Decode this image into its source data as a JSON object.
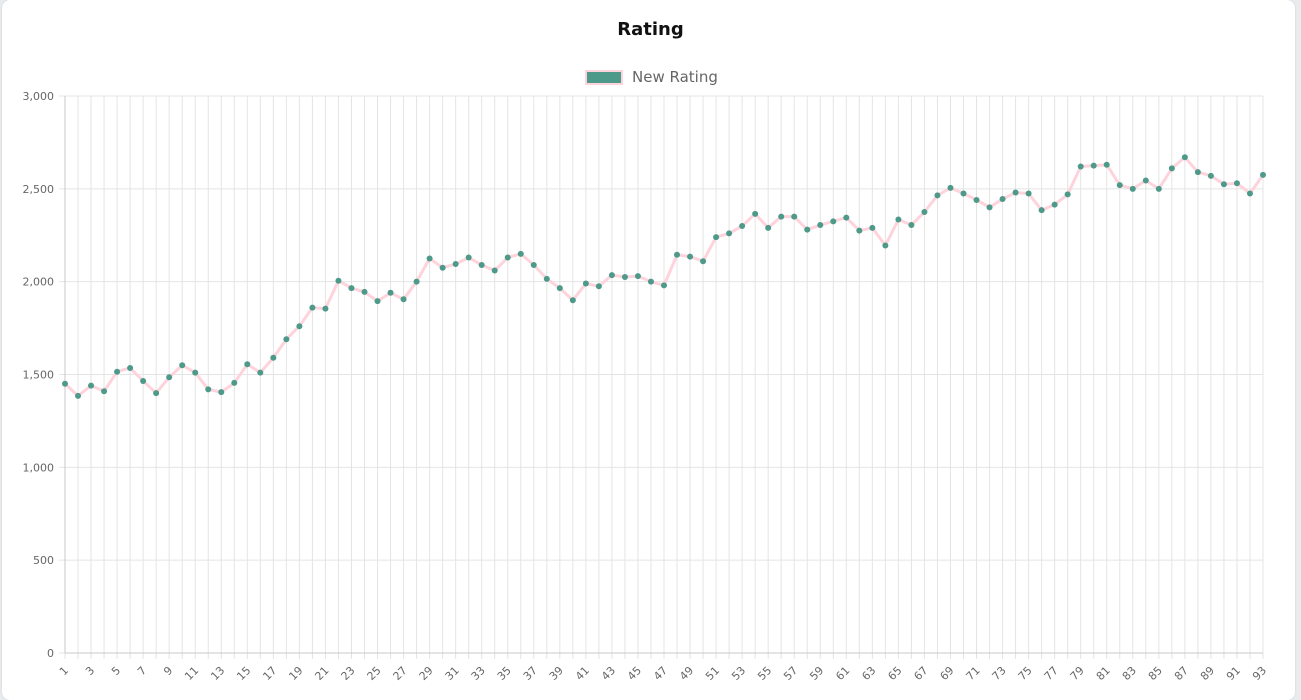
{
  "colors": {
    "point": "#4e9a8a",
    "line": "#ffd3dc",
    "grid": "#e4e4e4",
    "axis": "#c8c8c8"
  },
  "chart_data": {
    "type": "line",
    "title": "Rating",
    "xlabel": "",
    "ylabel": "",
    "legend_position": "top",
    "grid": true,
    "ylim": [
      0,
      3000
    ],
    "y_ticks": [
      "0",
      "500",
      "1,000",
      "1,500",
      "2,000",
      "2,500",
      "3,000"
    ],
    "y_tick_values": [
      0,
      500,
      1000,
      1500,
      2000,
      2500,
      3000
    ],
    "categories": [
      "1",
      "2",
      "3",
      "4",
      "5",
      "6",
      "7",
      "8",
      "9",
      "10",
      "11",
      "12",
      "13",
      "14",
      "15",
      "16",
      "17",
      "18",
      "19",
      "20",
      "21",
      "22",
      "23",
      "24",
      "25",
      "26",
      "27",
      "28",
      "29",
      "30",
      "31",
      "32",
      "33",
      "34",
      "35",
      "36",
      "37",
      "38",
      "39",
      "40",
      "41",
      "42",
      "43",
      "44",
      "45",
      "46",
      "47",
      "48",
      "49",
      "50",
      "51",
      "52",
      "53",
      "54",
      "55",
      "56",
      "57",
      "58",
      "59",
      "60",
      "61",
      "62",
      "63",
      "64",
      "65",
      "66",
      "67",
      "68",
      "69",
      "70",
      "71",
      "72",
      "73",
      "74",
      "75",
      "76",
      "77",
      "78",
      "79",
      "80",
      "81",
      "82",
      "83",
      "84",
      "85",
      "86",
      "87",
      "88",
      "89",
      "90",
      "91",
      "92",
      "93"
    ],
    "x_tick_labels": [
      "1",
      "3",
      "5",
      "7",
      "9",
      "11",
      "13",
      "15",
      "17",
      "19",
      "21",
      "23",
      "25",
      "27",
      "29",
      "31",
      "33",
      "35",
      "37",
      "39",
      "41",
      "43",
      "45",
      "47",
      "49",
      "51",
      "53",
      "55",
      "57",
      "59",
      "61",
      "63",
      "65",
      "67",
      "69",
      "71",
      "73",
      "75",
      "77",
      "79",
      "81",
      "83",
      "85",
      "87",
      "89",
      "91",
      "93"
    ],
    "series": [
      {
        "name": "New Rating",
        "values": [
          1450,
          1385,
          1440,
          1410,
          1515,
          1535,
          1465,
          1400,
          1485,
          1550,
          1510,
          1420,
          1405,
          1455,
          1555,
          1510,
          1590,
          1690,
          1760,
          1860,
          1855,
          2005,
          1965,
          1945,
          1895,
          1940,
          1905,
          2000,
          2125,
          2075,
          2095,
          2130,
          2090,
          2060,
          2130,
          2150,
          2090,
          2015,
          1965,
          1900,
          1990,
          1975,
          2035,
          2025,
          2030,
          2000,
          1980,
          2145,
          2135,
          2110,
          2240,
          2260,
          2300,
          2365,
          2290,
          2350,
          2350,
          2280,
          2305,
          2325,
          2345,
          2275,
          2290,
          2195,
          2335,
          2305,
          2375,
          2465,
          2505,
          2475,
          2440,
          2400,
          2445,
          2480,
          2475,
          2385,
          2415,
          2470,
          2620,
          2625,
          2630,
          2520,
          2500,
          2545,
          2500,
          2610,
          2670,
          2590,
          2570,
          2525,
          2530,
          2475,
          2575
        ]
      }
    ]
  }
}
